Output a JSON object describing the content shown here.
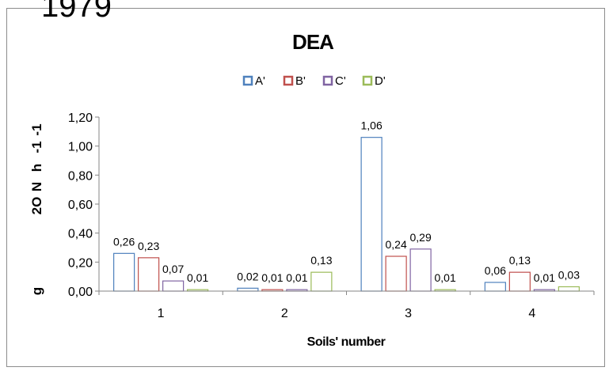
{
  "stamp": "1979",
  "chart_data": {
    "type": "bar",
    "title": "DEA",
    "xlabel": "Soils' number",
    "ylabel_fragments": [
      "2O",
      "N",
      "-1",
      "h",
      "-1",
      "g"
    ],
    "categories": [
      "1",
      "2",
      "3",
      "4"
    ],
    "ylim": [
      0,
      1.2
    ],
    "yticks": [
      "0,00",
      "0,20",
      "0,40",
      "0,60",
      "0,80",
      "1,00",
      "1,20"
    ],
    "legend_position": "top",
    "series": [
      {
        "name": "A'",
        "color": "#4f81bd",
        "values": [
          0.26,
          0.02,
          1.06,
          0.06
        ],
        "labels": [
          "0,26",
          "0,02",
          "1,06",
          "0,06"
        ]
      },
      {
        "name": "B'",
        "color": "#c0504d",
        "values": [
          0.23,
          0.01,
          0.24,
          0.13
        ],
        "labels": [
          "0,23",
          "0,01",
          "0,24",
          "0,13"
        ]
      },
      {
        "name": "C'",
        "color": "#8064a2",
        "values": [
          0.07,
          0.01,
          0.29,
          0.01
        ],
        "labels": [
          "0,07",
          "0,01",
          "0,29",
          "0,01"
        ]
      },
      {
        "name": "D'",
        "color": "#9bbb59",
        "values": [
          0.01,
          0.13,
          0.01,
          0.03
        ],
        "labels": [
          "0,01",
          "0,13",
          "0,01",
          "0,03"
        ]
      }
    ]
  }
}
